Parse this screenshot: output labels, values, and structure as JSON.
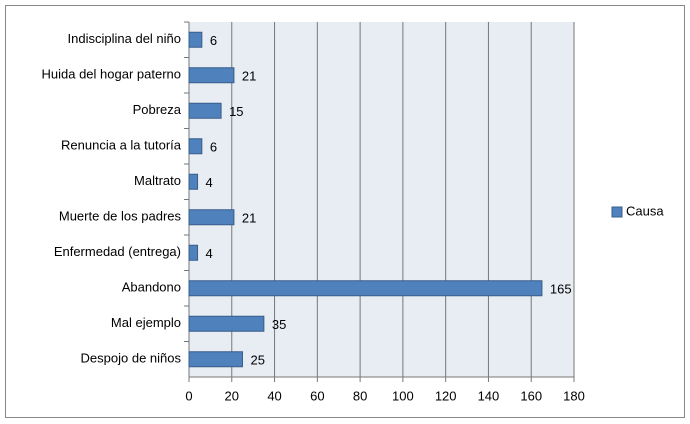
{
  "chart_data": {
    "type": "bar",
    "orientation": "horizontal",
    "categories": [
      "Indisciplina del niño",
      "Huida del hogar paterno",
      "Pobreza",
      "Renuncia a la tutoría",
      "Maltrato",
      "Muerte de los padres",
      "Enfermedad (entrega)",
      "Abandono",
      "Mal ejemplo",
      "Despojo de niños"
    ],
    "series": [
      {
        "name": "Causa",
        "color": "#4f81bd",
        "values": [
          6,
          21,
          15,
          6,
          4,
          21,
          4,
          165,
          35,
          25
        ]
      }
    ],
    "xlim": [
      0,
      180
    ],
    "xticks": [
      0,
      20,
      40,
      60,
      80,
      100,
      120,
      140,
      160,
      180
    ],
    "grid": true,
    "legend": "right"
  }
}
